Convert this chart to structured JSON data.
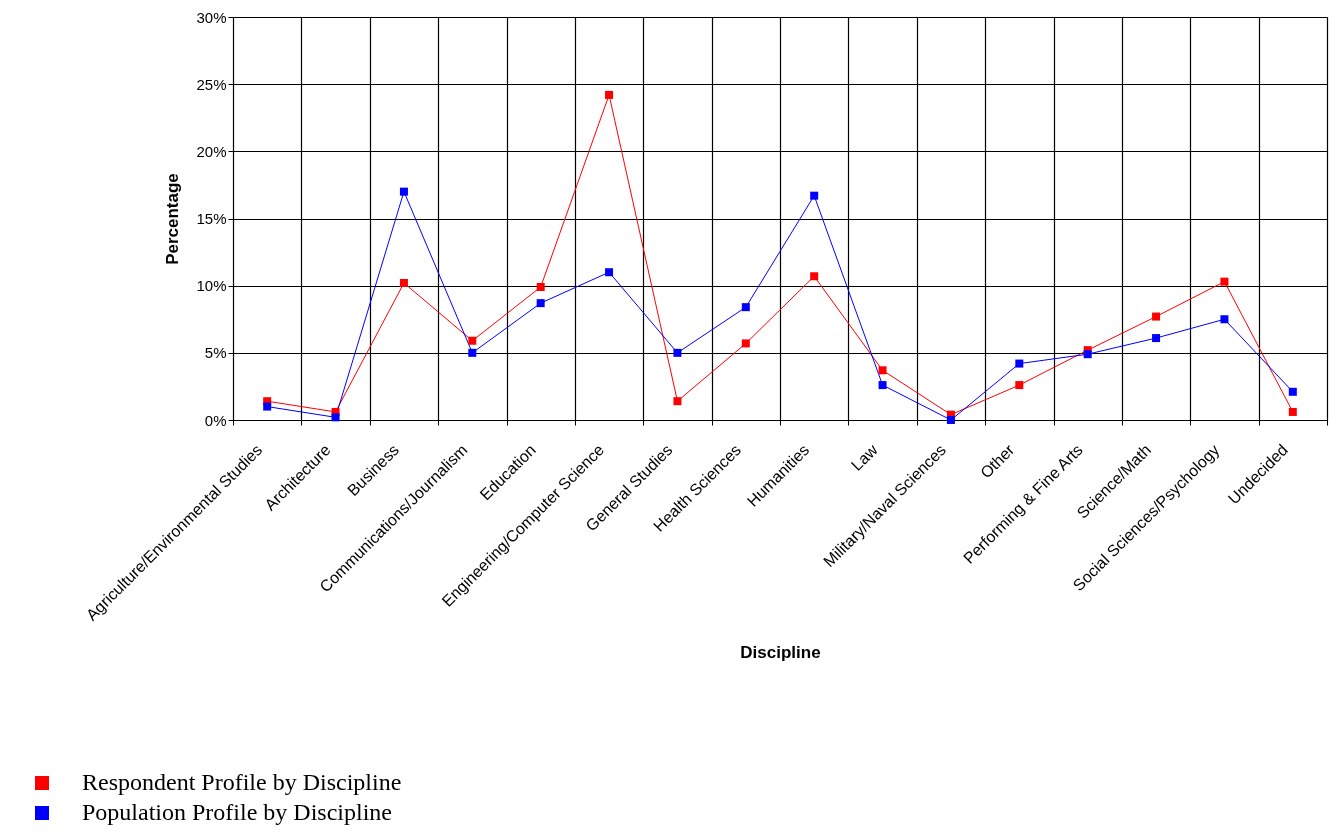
{
  "chart_data": {
    "type": "line",
    "xlabel": "Discipline",
    "ylabel": "Percentage",
    "categories": [
      "Agriculture/Environmental Studies",
      "Architecture",
      "Business",
      "Communications/Journalism",
      "Education",
      "Engineering/Computer Science",
      "General Studies",
      "Health Sciences",
      "Humanities",
      "Law",
      "Military/Naval Sciences",
      "Other",
      "Performing & Fine Arts",
      "Science/Math",
      "Social Sciences/Psychology",
      "Undecided"
    ],
    "series": [
      {
        "name": "Respondent Profile by Discipline",
        "color": "#ff0000",
        "values": [
          1.4,
          0.6,
          10.2,
          5.9,
          9.9,
          24.2,
          1.4,
          5.7,
          10.7,
          3.7,
          0.4,
          2.6,
          5.2,
          7.7,
          10.3,
          0.6
        ]
      },
      {
        "name": "Population Profile by Discipline",
        "color": "#0000ff",
        "values": [
          1.0,
          0.2,
          17.0,
          5.0,
          8.7,
          11.0,
          5.0,
          8.4,
          16.7,
          2.6,
          0.0,
          4.2,
          4.9,
          6.1,
          7.5,
          2.1
        ]
      }
    ],
    "ylim": [
      0,
      30
    ],
    "yticks": [
      {
        "value": 0,
        "label": "0%"
      },
      {
        "value": 5,
        "label": "5%"
      },
      {
        "value": 10,
        "label": "10%"
      },
      {
        "value": 15,
        "label": "15%"
      },
      {
        "value": 20,
        "label": "20%"
      },
      {
        "value": 25,
        "label": "25%"
      },
      {
        "value": 30,
        "label": "30%"
      }
    ],
    "grid": true,
    "legend": "bottom left",
    "marker": "square",
    "line_style": "solid"
  }
}
